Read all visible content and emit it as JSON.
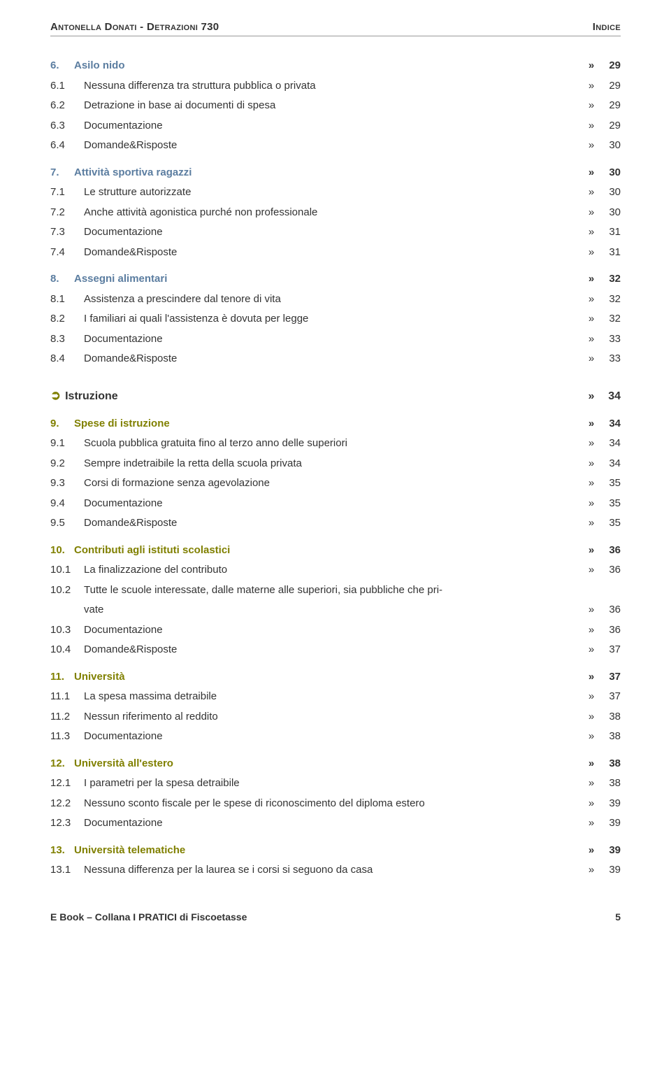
{
  "header": {
    "left": "Antonella Donati - Detrazioni 730",
    "right": "Indice"
  },
  "footer": {
    "left": "E Book – Collana I PRATICI di Fiscoetasse",
    "page_number": "5"
  },
  "colors": {
    "accent_blue": "#5b7da0",
    "accent_olive": "#808000",
    "accent_red": "#c00000",
    "text": "#333333"
  },
  "toc": [
    {
      "type": "main",
      "color": "accent_blue",
      "num": "6.",
      "title": "Asilo nido",
      "page": "29"
    },
    {
      "type": "sub",
      "num": "6.1",
      "title": "Nessuna differenza tra struttura pubblica o privata",
      "page": "29"
    },
    {
      "type": "sub",
      "num": "6.2",
      "title": "Detrazione in base ai documenti di spesa",
      "page": "29"
    },
    {
      "type": "sub",
      "num": "6.3",
      "title": "Documentazione",
      "page": "29"
    },
    {
      "type": "sub",
      "num": "6.4",
      "title": "Domande&Risposte",
      "page": "30"
    },
    {
      "type": "gap-sm"
    },
    {
      "type": "main",
      "color": "accent_blue",
      "num": "7.",
      "title": "Attività sportiva ragazzi",
      "page": "30"
    },
    {
      "type": "sub",
      "num": "7.1",
      "title": "Le strutture autorizzate",
      "page": "30"
    },
    {
      "type": "sub",
      "num": "7.2",
      "title": "Anche attività agonistica purché non professionale",
      "page": "30"
    },
    {
      "type": "sub",
      "num": "7.3",
      "title": "Documentazione",
      "page": "31"
    },
    {
      "type": "sub",
      "num": "7.4",
      "title": "Domande&Risposte",
      "page": "31"
    },
    {
      "type": "gap-sm"
    },
    {
      "type": "main",
      "color": "accent_blue",
      "num": "8.",
      "title": "Assegni alimentari",
      "page": "32"
    },
    {
      "type": "sub",
      "num": "8.1",
      "title": "Assistenza a prescindere dal tenore di vita",
      "page": "32"
    },
    {
      "type": "sub",
      "num": "8.2",
      "title": "I familiari ai quali l'assistenza è dovuta per legge",
      "page": "32"
    },
    {
      "type": "sub",
      "num": "8.3",
      "title": "Documentazione",
      "page": "33"
    },
    {
      "type": "sub",
      "num": "8.4",
      "title": "Domande&Risposte",
      "page": "33"
    },
    {
      "type": "gap-md"
    },
    {
      "type": "arrow",
      "color": "accent_olive",
      "title": "Istruzione",
      "page": "34"
    },
    {
      "type": "gap-sm"
    },
    {
      "type": "main",
      "color": "accent_olive",
      "num": "9.",
      "title": "Spese di istruzione",
      "page": "34"
    },
    {
      "type": "sub",
      "num": "9.1",
      "title": "Scuola pubblica gratuita fino al terzo anno delle superiori",
      "page": "34"
    },
    {
      "type": "sub",
      "num": "9.2",
      "title": "Sempre indetraibile la retta della scuola privata",
      "page": "34"
    },
    {
      "type": "sub",
      "num": "9.3",
      "title": "Corsi di formazione senza agevolazione",
      "page": "35"
    },
    {
      "type": "sub",
      "num": "9.4",
      "title": "Documentazione",
      "page": "35"
    },
    {
      "type": "sub",
      "num": "9.5",
      "title": "Domande&Risposte",
      "page": "35"
    },
    {
      "type": "gap-sm"
    },
    {
      "type": "main",
      "color": "accent_olive",
      "num": "10.",
      "title": "Contributi agli istituti scolastici",
      "page": "36"
    },
    {
      "type": "sub2",
      "num": "10.1",
      "title": "La finalizzazione del contributo",
      "page": "36"
    },
    {
      "type": "sub2multi",
      "num": "10.2",
      "title_top": "Tutte le scuole interessate, dalle materne alle superiori, sia pubbliche che pri-",
      "title_bottom": "vate",
      "page": "36"
    },
    {
      "type": "sub2",
      "num": "10.3",
      "title": "Documentazione",
      "page": "36"
    },
    {
      "type": "sub2",
      "num": "10.4",
      "title": "Domande&Risposte",
      "page": "37"
    },
    {
      "type": "gap-sm"
    },
    {
      "type": "main",
      "color": "accent_olive",
      "num": "11.",
      "title": "Università",
      "page": "37"
    },
    {
      "type": "sub2",
      "num": "11.1",
      "title": "La spesa massima detraibile",
      "page": "37"
    },
    {
      "type": "sub2",
      "num": "11.2",
      "title": "Nessun riferimento al reddito",
      "page": "38"
    },
    {
      "type": "sub2",
      "num": "11.3",
      "title": "Documentazione",
      "page": "38"
    },
    {
      "type": "gap-sm"
    },
    {
      "type": "main",
      "color": "accent_olive",
      "num": "12.",
      "title": "Università all'estero",
      "page": "38"
    },
    {
      "type": "sub2",
      "num": "12.1",
      "title": "I parametri per la spesa detraibile",
      "page": "38"
    },
    {
      "type": "sub2",
      "num": "12.2",
      "title": "Nessuno sconto fiscale per le spese di riconoscimento del diploma estero",
      "page": "39"
    },
    {
      "type": "sub2",
      "num": "12.3",
      "title": "Documentazione",
      "page": "39"
    },
    {
      "type": "gap-sm"
    },
    {
      "type": "main",
      "color": "accent_olive",
      "num": "13.",
      "title": "Università telematiche",
      "page": "39"
    },
    {
      "type": "sub2",
      "num": "13.1",
      "title": "Nessuna differenza per la laurea se i corsi si seguono da casa",
      "page": "39"
    }
  ]
}
